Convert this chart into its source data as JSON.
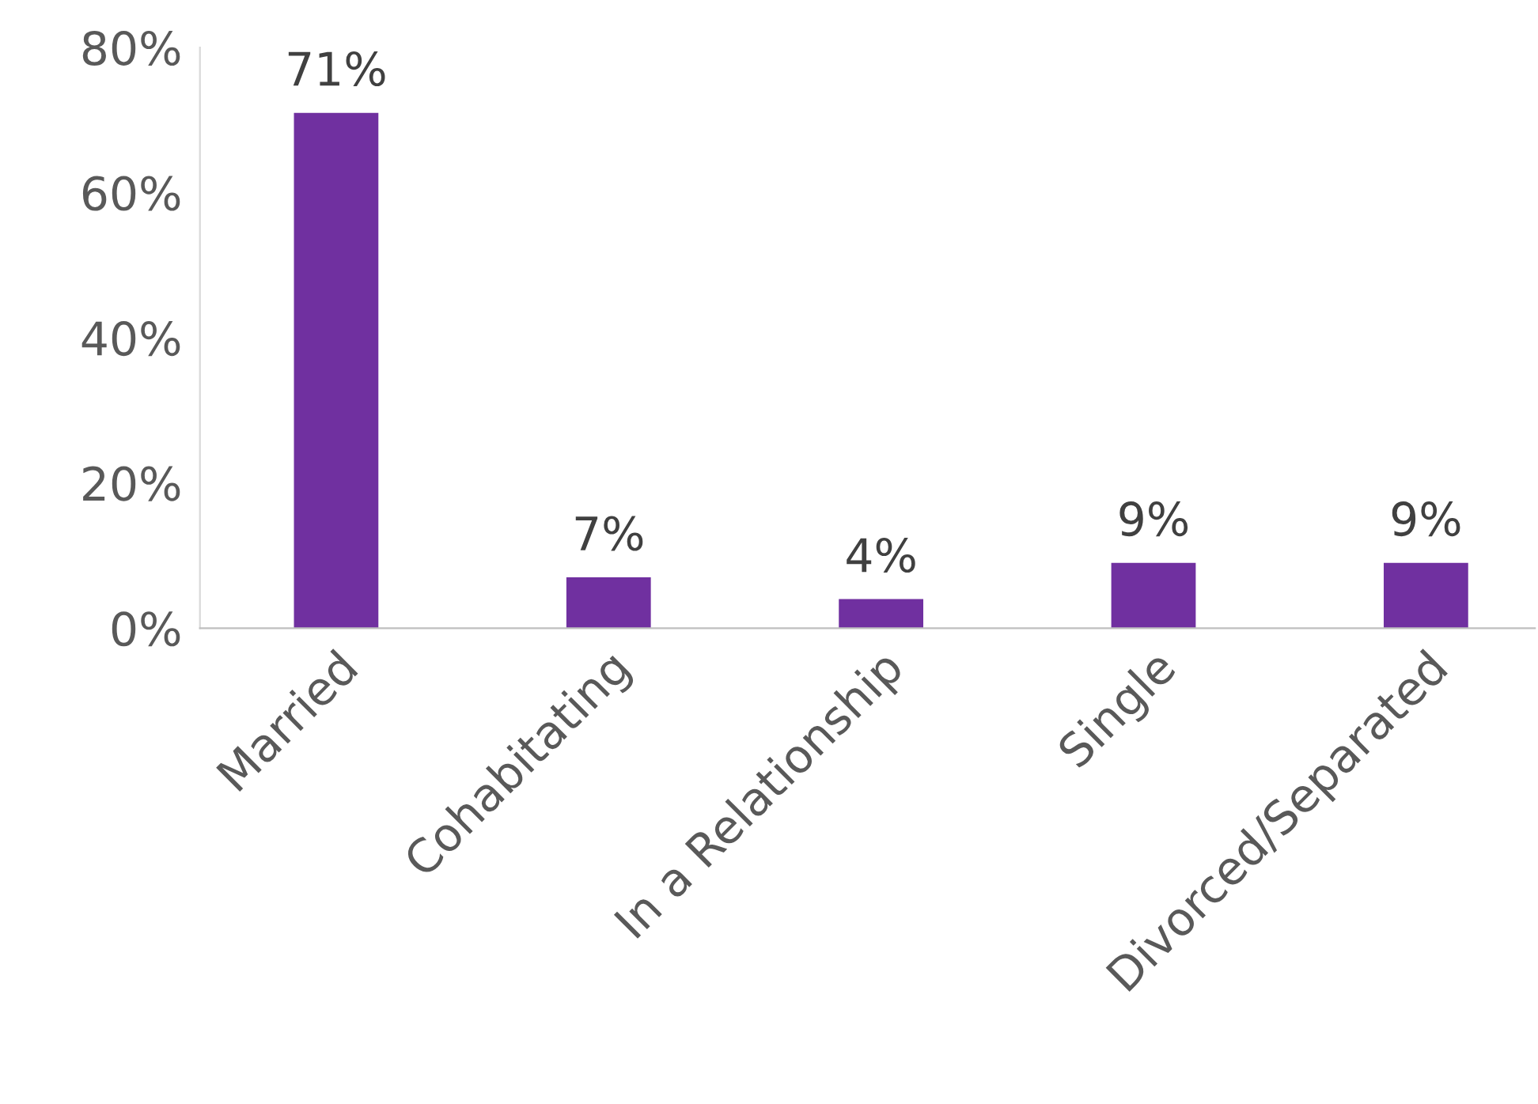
{
  "chart_data": {
    "type": "bar",
    "categories": [
      "Married",
      "Cohabitating",
      "In a Relationship",
      "Single",
      "Divorced/Separated"
    ],
    "values": [
      71,
      7,
      4,
      9,
      9
    ],
    "value_labels": [
      "71%",
      "7%",
      "4%",
      "9%",
      "9%"
    ],
    "color": "#7030a0",
    "ylim": [
      0,
      80
    ],
    "yticks": [
      {
        "value": 0,
        "label": "0%"
      },
      {
        "value": 20,
        "label": "20%"
      },
      {
        "value": 40,
        "label": "40%"
      },
      {
        "value": 60,
        "label": "60%"
      },
      {
        "value": 80,
        "label": "80%"
      }
    ],
    "grid": false,
    "legend": false
  }
}
